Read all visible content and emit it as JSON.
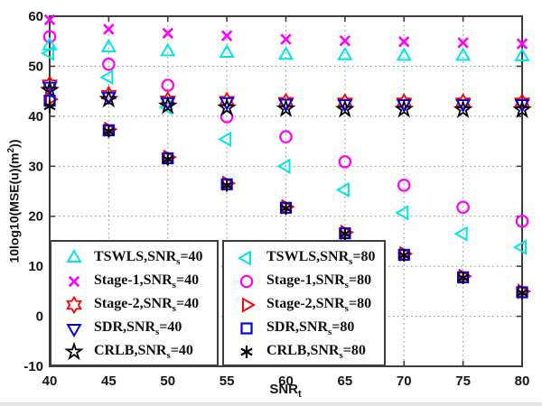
{
  "chart_data": {
    "type": "scatter",
    "title": "",
    "xlabel": {
      "text": "SNR",
      "sub": "t"
    },
    "ylabel": {
      "prefix": "10log10(MSE(u)(m",
      "sup": "2",
      "suffix": "))"
    },
    "xlim": [
      40,
      80
    ],
    "ylim": [
      -10,
      60
    ],
    "xticks": [
      40,
      45,
      50,
      55,
      60,
      65,
      70,
      75,
      80
    ],
    "yticks": [
      -10,
      0,
      10,
      20,
      30,
      40,
      50,
      60
    ],
    "grid": "dotted",
    "grid_color": "#9b9b9b",
    "axis_color": "#3d3d3d",
    "x": [
      40,
      45,
      50,
      55,
      60,
      65,
      70,
      75,
      80
    ],
    "series": [
      {
        "name": "TSWLS,SNR_s=40",
        "marker": "triangle-up",
        "color": "#00e6e6",
        "values": [
          54.1,
          53.7,
          52.9,
          52.6,
          52.2,
          52.1,
          52.0,
          52.0,
          51.9
        ],
        "legend": {
          "prefix": "TSWLS,SNR",
          "sub": "s",
          "suffix": "=40"
        }
      },
      {
        "name": "Stage-1,SNR_s=40",
        "marker": "x",
        "color": "#ff00ff",
        "values": [
          59.3,
          57.4,
          56.6,
          56.1,
          55.4,
          55.1,
          54.9,
          54.7,
          54.5
        ],
        "legend": {
          "prefix": "Stage-1,SNR",
          "sub": "s",
          "suffix": "=40"
        }
      },
      {
        "name": "Stage-2,SNR_s=40",
        "marker": "hexagram",
        "color": "#ff0000",
        "values": [
          46.4,
          44.3,
          43.2,
          43.1,
          42.9,
          42.8,
          42.8,
          42.8,
          42.8
        ],
        "legend": {
          "prefix": "Stage-2,SNR",
          "sub": "s",
          "suffix": "=40"
        }
      },
      {
        "name": "SDR,SNR_s=40",
        "marker": "triangle-down",
        "color": "#0000ee",
        "values": [
          46.0,
          44.0,
          42.9,
          42.9,
          42.6,
          42.5,
          42.5,
          42.5,
          42.5
        ],
        "legend": {
          "prefix": "SDR,SNR",
          "sub": "s",
          "suffix": "=40"
        }
      },
      {
        "name": "CRLB,SNR_s=40",
        "marker": "pentagram",
        "color": "#000000",
        "values": [
          45.2,
          43.4,
          42.1,
          41.7,
          41.5,
          41.4,
          41.4,
          41.3,
          41.3
        ],
        "legend": {
          "prefix": "CRLB,SNR",
          "sub": "s",
          "suffix": "=40"
        }
      },
      {
        "name": "TSWLS,SNR_s=80",
        "marker": "triangle-left",
        "color": "#00e6e6",
        "values": [
          52.6,
          47.8,
          41.8,
          35.4,
          30.0,
          25.3,
          20.7,
          16.5,
          13.8
        ],
        "legend": {
          "prefix": "TSWLS,SNR",
          "sub": "s",
          "suffix": "=80"
        }
      },
      {
        "name": "Stage-1,SNR_s=80",
        "marker": "circle",
        "color": "#ff00ff",
        "values": [
          55.9,
          50.4,
          46.2,
          39.9,
          35.9,
          30.9,
          26.2,
          21.8,
          19.0
        ],
        "legend": {
          "prefix": "Stage-1,SNR",
          "sub": "s",
          "suffix": "=80"
        }
      },
      {
        "name": "Stage-2,SNR_s=80",
        "marker": "triangle-right",
        "color": "#ff0000",
        "values": [
          43.4,
          37.4,
          31.8,
          26.6,
          21.9,
          16.8,
          12.5,
          8.0,
          5.0
        ],
        "legend": {
          "prefix": "Stage-2,SNR",
          "sub": "s",
          "suffix": "=80"
        }
      },
      {
        "name": "SDR,SNR_s=80",
        "marker": "square",
        "color": "#0000ee",
        "values": [
          43.1,
          37.2,
          31.6,
          26.4,
          21.7,
          16.6,
          12.3,
          7.8,
          4.8
        ],
        "legend": {
          "prefix": "SDR,SNR",
          "sub": "s",
          "suffix": "=80"
        }
      },
      {
        "name": "CRLB,SNR_s=80",
        "marker": "asterisk",
        "color": "#000000",
        "values": [
          42.0,
          37.0,
          31.4,
          26.2,
          21.6,
          16.5,
          12.2,
          7.7,
          4.7
        ],
        "legend": {
          "prefix": "CRLB,SNR",
          "sub": "s",
          "suffix": "=80"
        }
      }
    ],
    "legend_boxes": [
      {
        "series": [
          0,
          1,
          2,
          3,
          4
        ]
      },
      {
        "series": [
          5,
          6,
          7,
          8,
          9
        ]
      }
    ]
  }
}
